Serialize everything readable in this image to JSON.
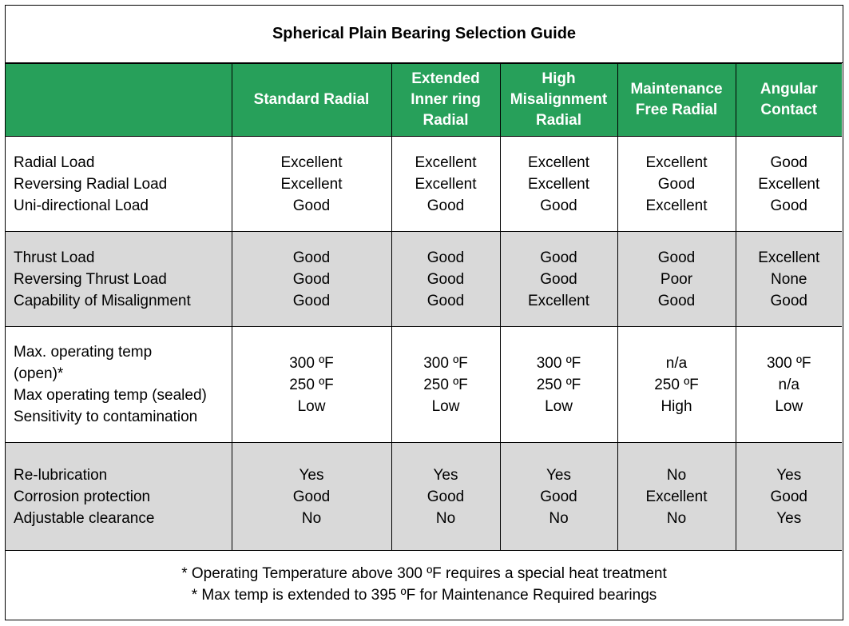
{
  "title": "Spherical Plain Bearing Selection Guide",
  "columns": [
    {
      "label": [
        "Standard Radial"
      ]
    },
    {
      "label": [
        "Extended",
        "Inner ring",
        "Radial"
      ]
    },
    {
      "label": [
        "High",
        "Misalignment",
        "Radial"
      ]
    },
    {
      "label": [
        "Maintenance",
        "Free Radial"
      ]
    },
    {
      "label": [
        "Angular",
        "Contact"
      ]
    }
  ],
  "groups": [
    {
      "labels": [
        "Radial Load",
        "Reversing Radial Load",
        "Uni-directional Load"
      ],
      "values": [
        [
          "Excellent",
          "Excellent",
          "Good"
        ],
        [
          "Excellent",
          "Excellent",
          "Good"
        ],
        [
          "Excellent",
          "Excellent",
          "Good"
        ],
        [
          "Excellent",
          "Good",
          "Excellent"
        ],
        [
          "Good",
          "Excellent",
          "Good"
        ]
      ]
    },
    {
      "labels": [
        "Thrust Load",
        "Reversing Thrust Load",
        "Capability of Misalignment"
      ],
      "values": [
        [
          "Good",
          "Good",
          "Good"
        ],
        [
          "Good",
          "Good",
          "Good"
        ],
        [
          "Good",
          "Good",
          "Excellent"
        ],
        [
          "Good",
          "Poor",
          "Good"
        ],
        [
          "Excellent",
          "None",
          "Good"
        ]
      ]
    },
    {
      "labels": [
        "Max. operating temp",
        "(open)*",
        "Max operating temp (sealed)",
        "Sensitivity to contamination"
      ],
      "values": [
        [
          "300 ºF",
          "250 ºF",
          "Low"
        ],
        [
          "300 ºF",
          "250 ºF",
          "Low"
        ],
        [
          "300 ºF",
          "250 ºF",
          "Low"
        ],
        [
          "n/a",
          "250 ºF",
          "High"
        ],
        [
          "300 ºF",
          "n/a",
          "Low"
        ]
      ]
    },
    {
      "labels": [
        "Re-lubrication",
        "Corrosion protection",
        "Adjustable clearance"
      ],
      "values": [
        [
          "Yes",
          "Good",
          "No"
        ],
        [
          "Yes",
          "Good",
          "No"
        ],
        [
          "Yes",
          "Good",
          "No"
        ],
        [
          "No",
          "Excellent",
          "No"
        ],
        [
          "Yes",
          "Good",
          "Yes"
        ]
      ]
    }
  ],
  "footnotes": [
    "* Operating Temperature above 300 ºF requires a special heat treatment",
    "* Max temp is extended to 395 ºF for Maintenance Required bearings"
  ]
}
